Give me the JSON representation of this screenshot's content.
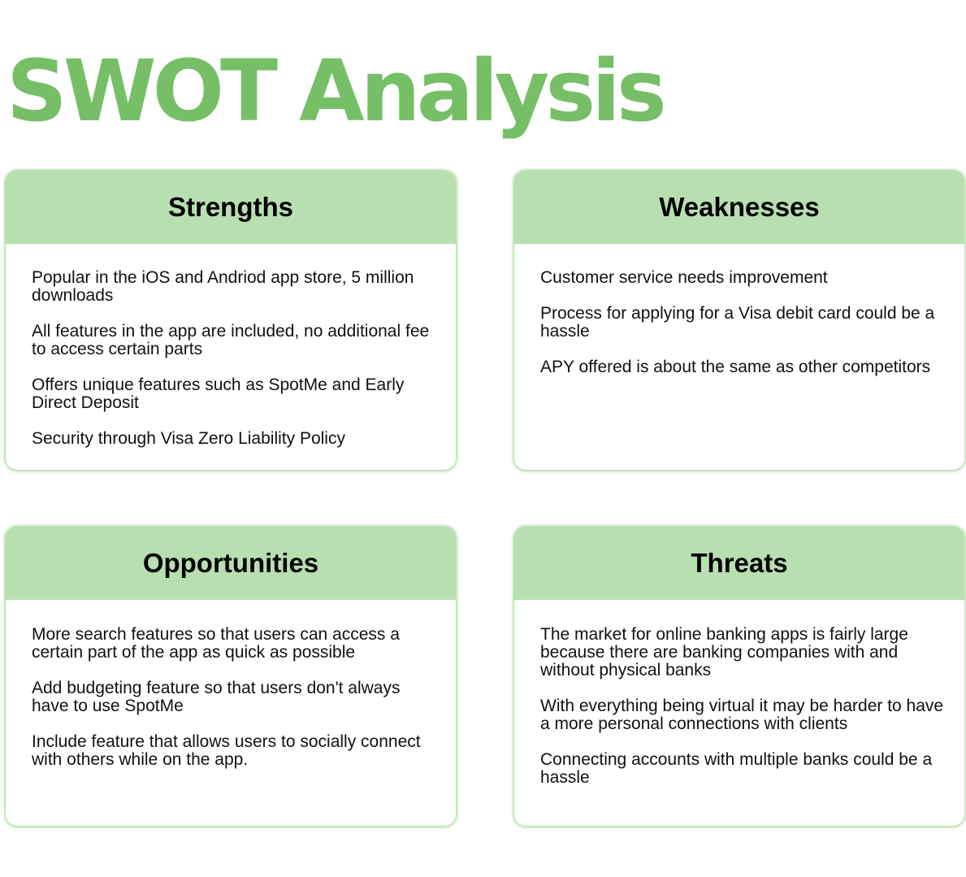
{
  "title": "SWOT Analysis",
  "colors": {
    "title": "#77bf67",
    "header_fill": "#b8dfb0",
    "card_border": "#9fd18f"
  },
  "quadrants": [
    {
      "heading": "Strengths",
      "items": [
        "Popular in the iOS and Andriod app store, 5 million downloads",
        "All features in the app are included, no additional fee to access certain parts",
        "Offers unique features such as SpotMe and Early Direct Deposit",
        "Security through Visa Zero Liability Policy"
      ]
    },
    {
      "heading": "Weaknesses",
      "items": [
        "Customer service needs improvement",
        "Process for applying for a  Visa debit card could be a hassle",
        "APY offered is about the same as other competitors"
      ]
    },
    {
      "heading": "Opportunities",
      "items": [
        "More search features so that users can access a certain part of the app as quick as possible",
        "Add budgeting feature so that users don't always have to use SpotMe",
        "Include feature that allows users to socially connect with others while on the app."
      ]
    },
    {
      "heading": "Threats",
      "items": [
        "The market for online banking apps is fairly large because there are banking companies with and without physical banks",
        "With everything being virtual it may be harder to have a more personal connections with clients",
        "Connecting accounts with multiple banks could be a hassle"
      ]
    }
  ]
}
